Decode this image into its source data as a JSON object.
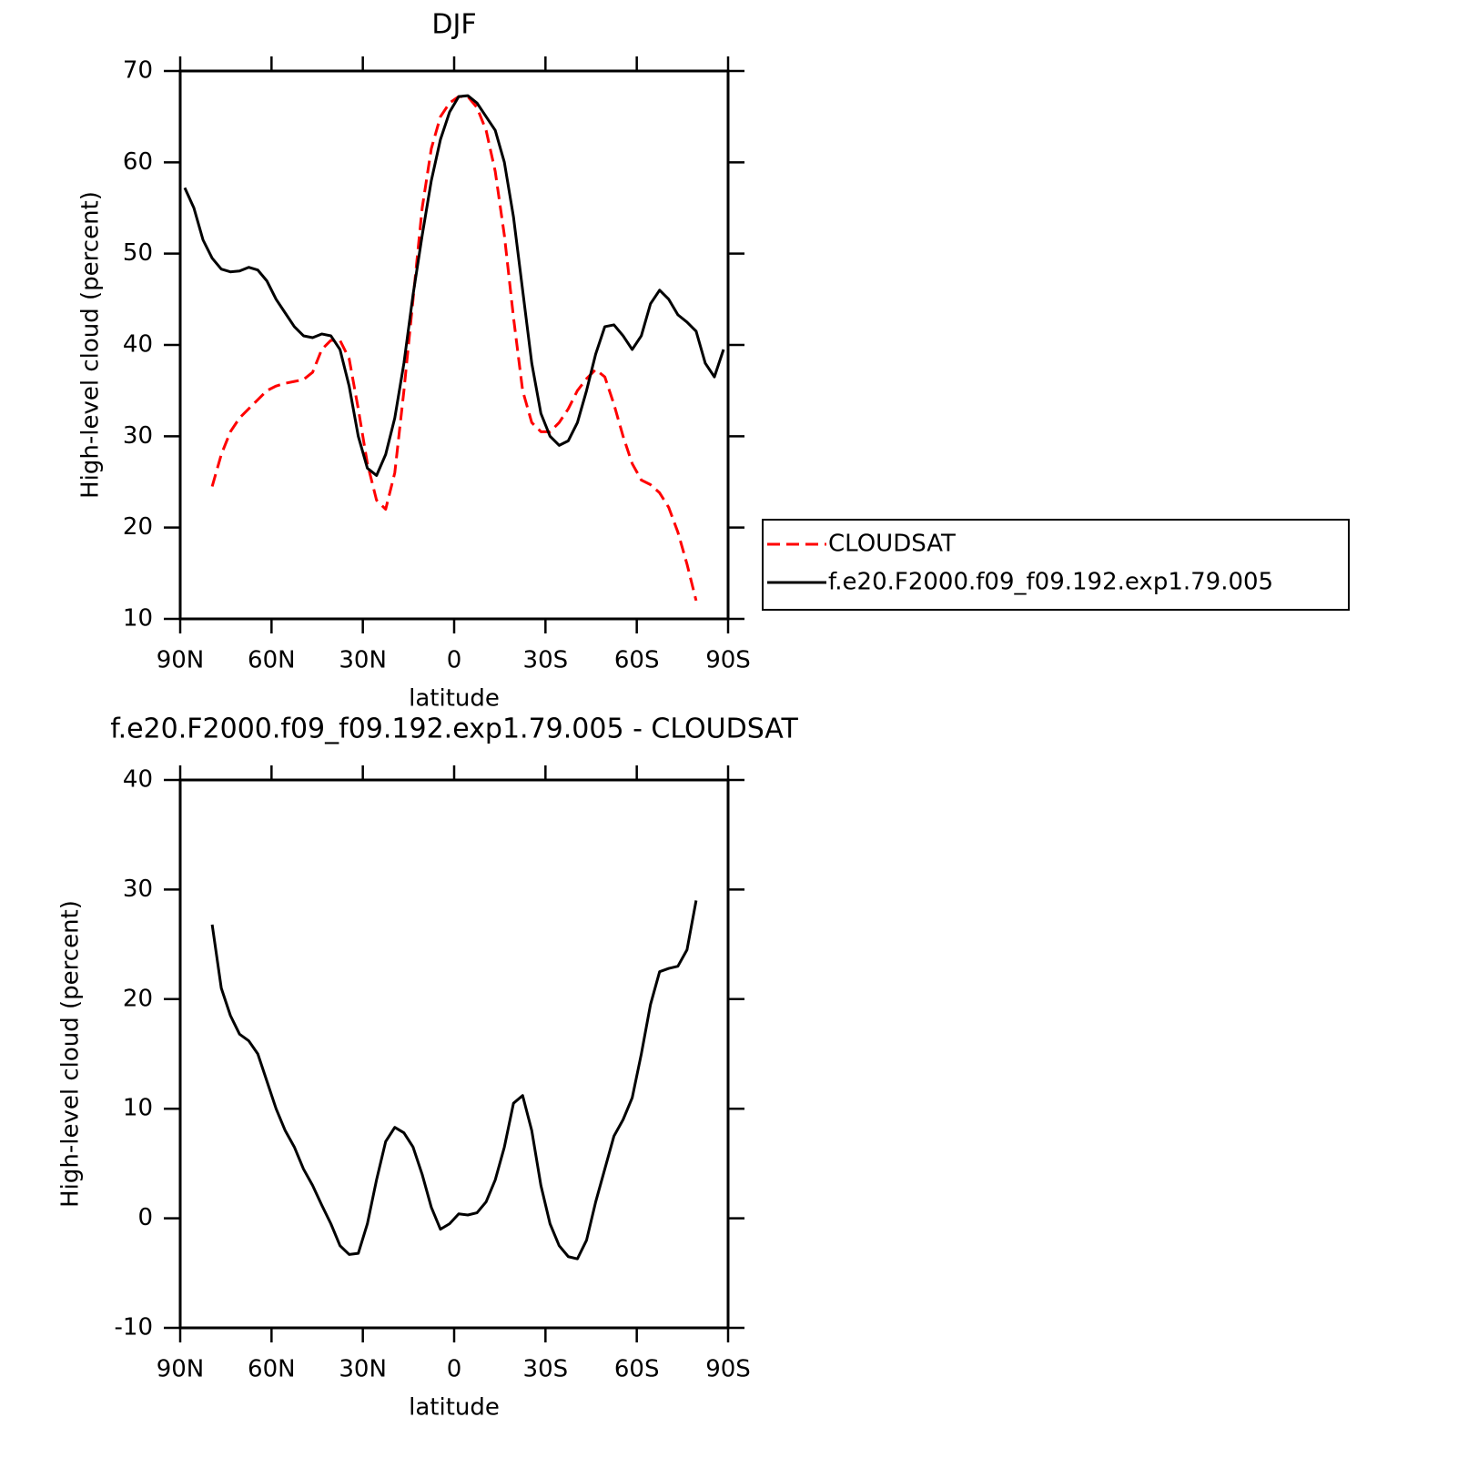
{
  "chart_data": [
    {
      "type": "line",
      "title": "DJF",
      "xlabel": "latitude",
      "ylabel": "High-level cloud (percent)",
      "xlim": [
        90,
        -90
      ],
      "xticks": [
        {
          "value": 90,
          "label": "90N"
        },
        {
          "value": 60,
          "label": "60N"
        },
        {
          "value": 30,
          "label": "30N"
        },
        0,
        {
          "value": -30,
          "label": "30S"
        },
        {
          "value": -60,
          "label": "60S"
        },
        {
          "value": -90,
          "label": "90S"
        }
      ],
      "ylim": [
        10,
        70
      ],
      "yticks": [
        10,
        20,
        30,
        40,
        50,
        60,
        70
      ],
      "legend": "right",
      "x": [
        88.5,
        85.5,
        82.5,
        79.5,
        76.5,
        73.5,
        70.5,
        67.5,
        64.5,
        61.5,
        58.5,
        55.5,
        52.5,
        49.5,
        46.5,
        43.5,
        40.5,
        37.5,
        34.5,
        31.5,
        28.5,
        25.5,
        22.5,
        19.5,
        16.5,
        13.5,
        10.5,
        7.5,
        4.5,
        1.5,
        -1.5,
        -4.5,
        -7.5,
        -10.5,
        -13.5,
        -16.5,
        -19.5,
        -22.5,
        -25.5,
        -28.5,
        -31.5,
        -34.5,
        -37.5,
        -40.5,
        -43.5,
        -46.5,
        -49.5,
        -52.5,
        -55.5,
        -58.5,
        -61.5,
        -64.5,
        -67.5,
        -70.5,
        -73.5,
        -76.5,
        -79.5,
        -82.5,
        -85.5,
        -88.5
      ],
      "series": [
        {
          "name": "CLOUDSAT",
          "color": "#ff0000",
          "dashed": true,
          "values": [
            null,
            null,
            null,
            24.5,
            28,
            30.5,
            32,
            33,
            34,
            35,
            35.5,
            35.8,
            36,
            36.2,
            37,
            39.5,
            40.5,
            40.5,
            38.5,
            33,
            27,
            23,
            22,
            26,
            35,
            45,
            55,
            61.5,
            65,
            66.5,
            67.2,
            67.2,
            66,
            63.5,
            59,
            52,
            43,
            35,
            31.5,
            30.5,
            30.5,
            31.5,
            33,
            35,
            36.3,
            37.3,
            36.5,
            33.5,
            30,
            27,
            25.2,
            24.7,
            23.8,
            22.2,
            19.5,
            16,
            12,
            null,
            null,
            null
          ]
        },
        {
          "name": "f.e20.F2000.f09_f09.192.exp1.79.005",
          "color": "#000000",
          "dashed": false,
          "values": [
            57.2,
            55,
            51.5,
            49.5,
            48.3,
            48,
            48.1,
            48.5,
            48.2,
            47,
            45,
            43.5,
            42,
            41,
            40.8,
            41.2,
            41,
            39.5,
            35.5,
            30,
            26.5,
            25.7,
            28,
            32,
            38,
            45.5,
            52,
            58,
            62.5,
            65.5,
            67.2,
            67.3,
            66.5,
            65,
            63.5,
            60,
            54,
            46,
            38,
            32.5,
            30,
            29,
            29.5,
            31.5,
            35,
            39,
            42,
            42.2,
            41,
            39.5,
            41,
            44.5,
            46,
            45,
            43.3,
            42.5,
            41.5,
            38,
            36.5,
            39.5
          ]
        }
      ]
    },
    {
      "type": "line",
      "title": "f.e20.F2000.f09_f09.192.exp1.79.005 - CLOUDSAT",
      "xlabel": "latitude",
      "ylabel": "High-level cloud (percent)",
      "xlim": [
        90,
        -90
      ],
      "xticks": [
        {
          "value": 90,
          "label": "90N"
        },
        {
          "value": 60,
          "label": "60N"
        },
        {
          "value": 30,
          "label": "30N"
        },
        0,
        {
          "value": -30,
          "label": "30S"
        },
        {
          "value": -60,
          "label": "60S"
        },
        {
          "value": -90,
          "label": "90S"
        }
      ],
      "ylim": [
        -10,
        40
      ],
      "yticks": [
        -10,
        0,
        10,
        20,
        30,
        40
      ],
      "x": [
        88.5,
        85.5,
        82.5,
        79.5,
        76.5,
        73.5,
        70.5,
        67.5,
        64.5,
        61.5,
        58.5,
        55.5,
        52.5,
        49.5,
        46.5,
        43.5,
        40.5,
        37.5,
        34.5,
        31.5,
        28.5,
        25.5,
        22.5,
        19.5,
        16.5,
        13.5,
        10.5,
        7.5,
        4.5,
        1.5,
        -1.5,
        -4.5,
        -7.5,
        -10.5,
        -13.5,
        -16.5,
        -19.5,
        -22.5,
        -25.5,
        -28.5,
        -31.5,
        -34.5,
        -37.5,
        -40.5,
        -43.5,
        -46.5,
        -49.5,
        -52.5,
        -55.5,
        -58.5,
        -61.5,
        -64.5,
        -67.5,
        -70.5,
        -73.5,
        -76.5,
        -79.5,
        -82.5,
        -85.5,
        -88.5
      ],
      "series": [
        {
          "color": "#000000",
          "dashed": false,
          "values": [
            null,
            null,
            null,
            26.8,
            21,
            18.5,
            16.8,
            16.2,
            15,
            12.5,
            10,
            8,
            6.5,
            4.5,
            3,
            1.2,
            -0.5,
            -2.5,
            -3.3,
            -3.2,
            -0.5,
            3.5,
            7,
            8.3,
            7.8,
            6.5,
            4,
            1,
            -1,
            -0.5,
            0.4,
            0.3,
            0.5,
            1.5,
            3.5,
            6.5,
            10.5,
            11.2,
            8,
            3,
            -0.5,
            -2.5,
            -3.5,
            -3.7,
            -2,
            1.5,
            4.5,
            7.5,
            9,
            11,
            15,
            19.5,
            22.5,
            22.8,
            23,
            24.5,
            29,
            null,
            null,
            null
          ]
        }
      ]
    }
  ]
}
